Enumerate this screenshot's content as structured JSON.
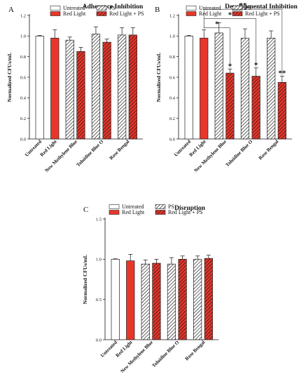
{
  "chart_data": [
    {
      "panel": "A",
      "type": "bar",
      "title": "Adherence Inhibition",
      "ylabel": "Normalized CFUs/mL",
      "ylim": [
        0,
        1.2
      ],
      "yticks": [
        "0.0",
        "0.2",
        "0.4",
        "0.6",
        "0.8",
        "1.0",
        "1.2"
      ],
      "categories": [
        "Untreated",
        "Red Light",
        "New Methylene Blue",
        "Toluidine Blue O",
        "Rose Bengal"
      ],
      "bars": [
        {
          "category": "Untreated",
          "series": "Untreated",
          "value": 1.0,
          "error": 0.005
        },
        {
          "category": "Red Light",
          "series": "Red Light",
          "value": 0.98,
          "error": 0.08
        },
        {
          "category": "New Methylene Blue",
          "series": "PS",
          "value": 0.96,
          "error": 0.03
        },
        {
          "category": "New Methylene Blue",
          "series": "Red Light + PS",
          "value": 0.85,
          "error": 0.04
        },
        {
          "category": "Toluidine Blue O",
          "series": "PS",
          "value": 1.02,
          "error": 0.07
        },
        {
          "category": "Toluidine Blue O",
          "series": "Red Light + PS",
          "value": 0.94,
          "error": 0.03
        },
        {
          "category": "Rose Bengal",
          "series": "PS",
          "value": 1.01,
          "error": 0.07
        },
        {
          "category": "Rose Bengal",
          "series": "Red Light + PS",
          "value": 1.01,
          "error": 0.07
        }
      ],
      "significance": []
    },
    {
      "panel": "B",
      "type": "bar",
      "title": "Developmental Inhibition",
      "ylabel": "Normalized CFUs/mL",
      "ylim": [
        0,
        1.2
      ],
      "yticks": [
        "0.0",
        "0.2",
        "0.4",
        "0.6",
        "0.8",
        "1.0",
        "1.2"
      ],
      "categories": [
        "Untreated",
        "Red Light",
        "New Methylene Blue",
        "Toluidine Blue O",
        "Rose Bengal"
      ],
      "bars": [
        {
          "category": "Untreated",
          "series": "Untreated",
          "value": 1.0,
          "error": 0.005
        },
        {
          "category": "Red Light",
          "series": "Red Light",
          "value": 0.98,
          "error": 0.08
        },
        {
          "category": "New Methylene Blue",
          "series": "PS",
          "value": 1.03,
          "error": 0.1
        },
        {
          "category": "New Methylene Blue",
          "series": "Red Light + PS",
          "value": 0.64,
          "error": 0.04
        },
        {
          "category": "Toluidine Blue O",
          "series": "PS",
          "value": 0.98,
          "error": 0.09
        },
        {
          "category": "Toluidine Blue O",
          "series": "Red Light + PS",
          "value": 0.61,
          "error": 0.08
        },
        {
          "category": "Rose Bengal",
          "series": "PS",
          "value": 0.98,
          "error": 0.07
        },
        {
          "category": "Rose Bengal",
          "series": "Red Light + PS",
          "value": 0.55,
          "error": 0.06
        }
      ],
      "significance": [
        {
          "from": 1,
          "to": 3,
          "label": "*",
          "y": 1.08
        },
        {
          "from": 1,
          "to": 5,
          "label": "*",
          "y": 1.17
        },
        {
          "from": 1,
          "to": 7,
          "label": "**",
          "y": 1.26
        }
      ],
      "bar_labels": [
        {
          "bar": 3,
          "label": "*"
        },
        {
          "bar": 5,
          "label": "*"
        },
        {
          "bar": 7,
          "label": "**"
        }
      ]
    },
    {
      "panel": "C",
      "type": "bar",
      "title": "Disruption",
      "ylabel": "Normalized CFUs/mL",
      "ylim": [
        0,
        1.5
      ],
      "yticks": [
        "0.0",
        "0.5",
        "1.0",
        "1.5"
      ],
      "categories": [
        "Untreated",
        "Red Light",
        "New Methylene Blue",
        "Toluidine Blue O",
        "Rose Bengal"
      ],
      "bars": [
        {
          "category": "Untreated",
          "series": "Untreated",
          "value": 1.0,
          "error": 0.005
        },
        {
          "category": "Red Light",
          "series": "Red Light",
          "value": 0.98,
          "error": 0.08
        },
        {
          "category": "New Methylene Blue",
          "series": "PS",
          "value": 0.94,
          "error": 0.05
        },
        {
          "category": "New Methylene Blue",
          "series": "Red Light + PS",
          "value": 0.95,
          "error": 0.05
        },
        {
          "category": "Toluidine Blue O",
          "series": "PS",
          "value": 0.94,
          "error": 0.08
        },
        {
          "category": "Toluidine Blue O",
          "series": "Red Light + PS",
          "value": 1.0,
          "error": 0.04
        },
        {
          "category": "Rose Bengal",
          "series": "PS",
          "value": 1.0,
          "error": 0.04
        },
        {
          "category": "Rose Bengal",
          "series": "Red Light + PS",
          "value": 1.01,
          "error": 0.04
        }
      ],
      "significance": []
    }
  ],
  "legend": {
    "items": [
      {
        "label": "Untreated",
        "style": "white"
      },
      {
        "label": "PS",
        "style": "hatch-white"
      },
      {
        "label": "Red Light",
        "style": "red"
      },
      {
        "label": "Red Light + PS",
        "style": "hatch-red"
      }
    ]
  },
  "colors": {
    "red": "#e8362a",
    "dark_red": "#b71c1c",
    "outline": "#222222",
    "hatch": "#111111"
  }
}
